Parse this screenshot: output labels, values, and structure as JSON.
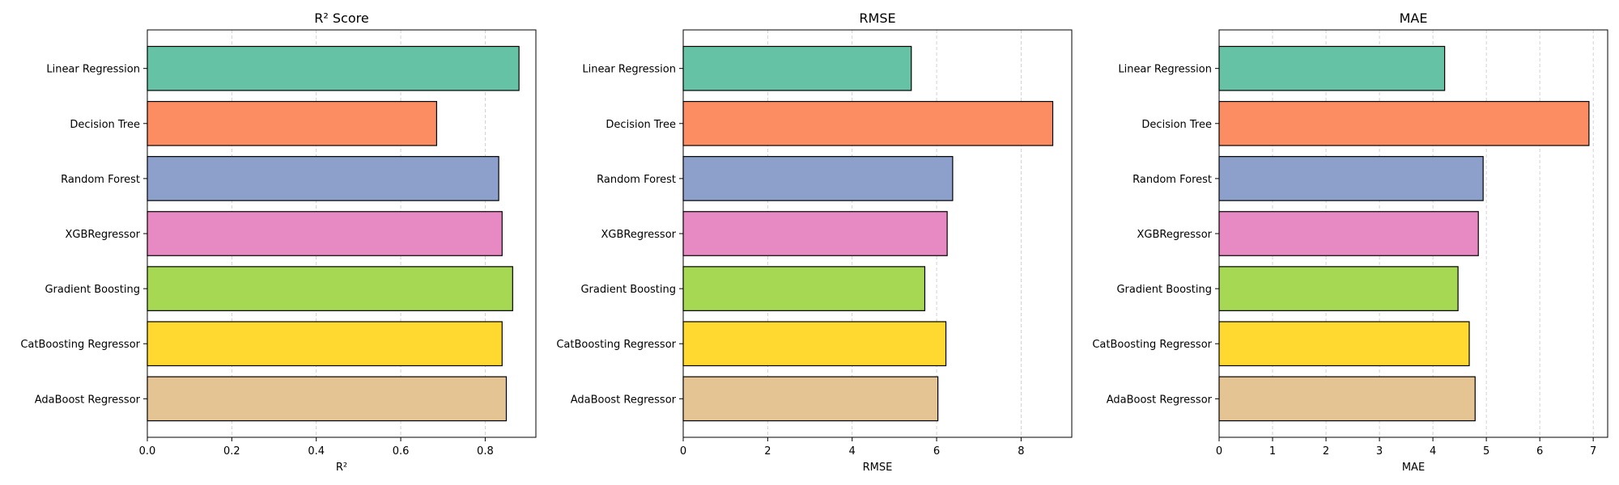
{
  "chart_data": [
    {
      "type": "bar",
      "orientation": "horizontal",
      "title": "R² Score",
      "xlabel": "R²",
      "ylabel": "",
      "categories": [
        "Linear Regression",
        "Decision Tree",
        "Random Forest",
        "XGBRegressor",
        "Gradient Boosting",
        "CatBoosting Regressor",
        "AdaBoost Regressor"
      ],
      "values": [
        0.88,
        0.685,
        0.832,
        0.84,
        0.865,
        0.84,
        0.85
      ],
      "xlim": [
        0,
        0.92
      ],
      "xticks": [
        "0.0",
        "0.2",
        "0.4",
        "0.6",
        "0.8"
      ],
      "grid": "x dashed",
      "colors": [
        "#66c2a5",
        "#fc8d62",
        "#8da0cb",
        "#e78ac3",
        "#a6d854",
        "#ffd92f",
        "#e5c494"
      ]
    },
    {
      "type": "bar",
      "orientation": "horizontal",
      "title": "RMSE",
      "xlabel": "RMSE",
      "ylabel": "",
      "categories": [
        "Linear Regression",
        "Decision Tree",
        "Random Forest",
        "XGBRegressor",
        "Gradient Boosting",
        "CatBoosting Regressor",
        "AdaBoost Regressor"
      ],
      "values": [
        5.4,
        8.75,
        6.38,
        6.25,
        5.72,
        6.22,
        6.03
      ],
      "xlim": [
        0,
        9.2
      ],
      "xticks": [
        "0",
        "2",
        "4",
        "6",
        "8"
      ],
      "grid": "x dashed",
      "colors": [
        "#66c2a5",
        "#fc8d62",
        "#8da0cb",
        "#e78ac3",
        "#a6d854",
        "#ffd92f",
        "#e5c494"
      ]
    },
    {
      "type": "bar",
      "orientation": "horizontal",
      "title": "MAE",
      "xlabel": "MAE",
      "ylabel": "",
      "categories": [
        "Linear Regression",
        "Decision Tree",
        "Random Forest",
        "XGBRegressor",
        "Gradient Boosting",
        "CatBoosting Regressor",
        "AdaBoost Regressor"
      ],
      "values": [
        4.22,
        6.92,
        4.94,
        4.85,
        4.47,
        4.68,
        4.79
      ],
      "xlim": [
        0,
        7.27
      ],
      "xticks": [
        "0",
        "1",
        "2",
        "3",
        "4",
        "5",
        "6",
        "7"
      ],
      "grid": "x dashed",
      "colors": [
        "#66c2a5",
        "#fc8d62",
        "#8da0cb",
        "#e78ac3",
        "#a6d854",
        "#ffd92f",
        "#e5c494"
      ]
    }
  ]
}
